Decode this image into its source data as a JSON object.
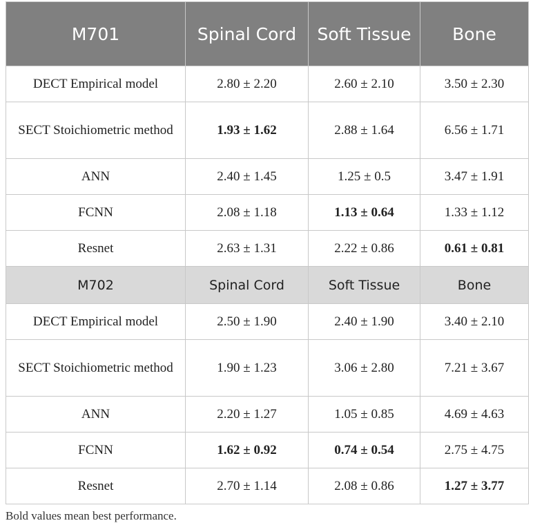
{
  "table": {
    "sections": [
      {
        "header": [
          "M701",
          "Spinal Cord",
          "Soft Tissue",
          "Bone"
        ],
        "rows": [
          {
            "label": "DECT Empirical model",
            "cells": [
              "2.80 ± 2.20",
              "2.60 ± 2.10",
              "3.50 ± 2.30"
            ],
            "bold": [
              false,
              false,
              false
            ]
          },
          {
            "label": "SECT Stoichiometric method",
            "cells": [
              "1.93 ± 1.62",
              "2.88 ± 1.64",
              "6.56 ± 1.71"
            ],
            "bold": [
              true,
              false,
              false
            ]
          },
          {
            "label": "ANN",
            "cells": [
              "2.40 ± 1.45",
              "1.25 ± 0.5",
              "3.47 ± 1.91"
            ],
            "bold": [
              false,
              false,
              false
            ]
          },
          {
            "label": "FCNN",
            "cells": [
              "2.08 ± 1.18",
              "1.13 ± 0.64",
              "1.33 ± 1.12"
            ],
            "bold": [
              false,
              true,
              false
            ]
          },
          {
            "label": "Resnet",
            "cells": [
              "2.63 ± 1.31",
              "2.22 ± 0.86",
              "0.61 ± 0.81"
            ],
            "bold": [
              false,
              false,
              true
            ]
          }
        ]
      },
      {
        "header": [
          "M702",
          "Spinal Cord",
          "Soft Tissue",
          "Bone"
        ],
        "rows": [
          {
            "label": "DECT Empirical model",
            "cells": [
              "2.50 ± 1.90",
              "2.40 ± 1.90",
              "3.40 ± 2.10"
            ],
            "bold": [
              false,
              false,
              false
            ]
          },
          {
            "label": "SECT Stoichiometric method",
            "cells": [
              "1.90 ± 1.23",
              "3.06 ± 2.80",
              "7.21 ± 3.67"
            ],
            "bold": [
              false,
              false,
              false
            ]
          },
          {
            "label": "ANN",
            "cells": [
              "2.20 ± 1.27",
              "1.05 ± 0.85",
              "4.69 ± 4.63"
            ],
            "bold": [
              false,
              false,
              false
            ]
          },
          {
            "label": "FCNN",
            "cells": [
              "1.62 ± 0.92",
              "0.74 ± 0.54",
              "2.75 ± 4.75"
            ],
            "bold": [
              true,
              true,
              false
            ]
          },
          {
            "label": "Resnet",
            "cells": [
              "2.70 ± 1.14",
              "2.08 ± 0.86",
              "1.27 ± 3.77"
            ],
            "bold": [
              false,
              false,
              true
            ]
          }
        ]
      }
    ]
  },
  "footnote": "Bold values mean best performance."
}
